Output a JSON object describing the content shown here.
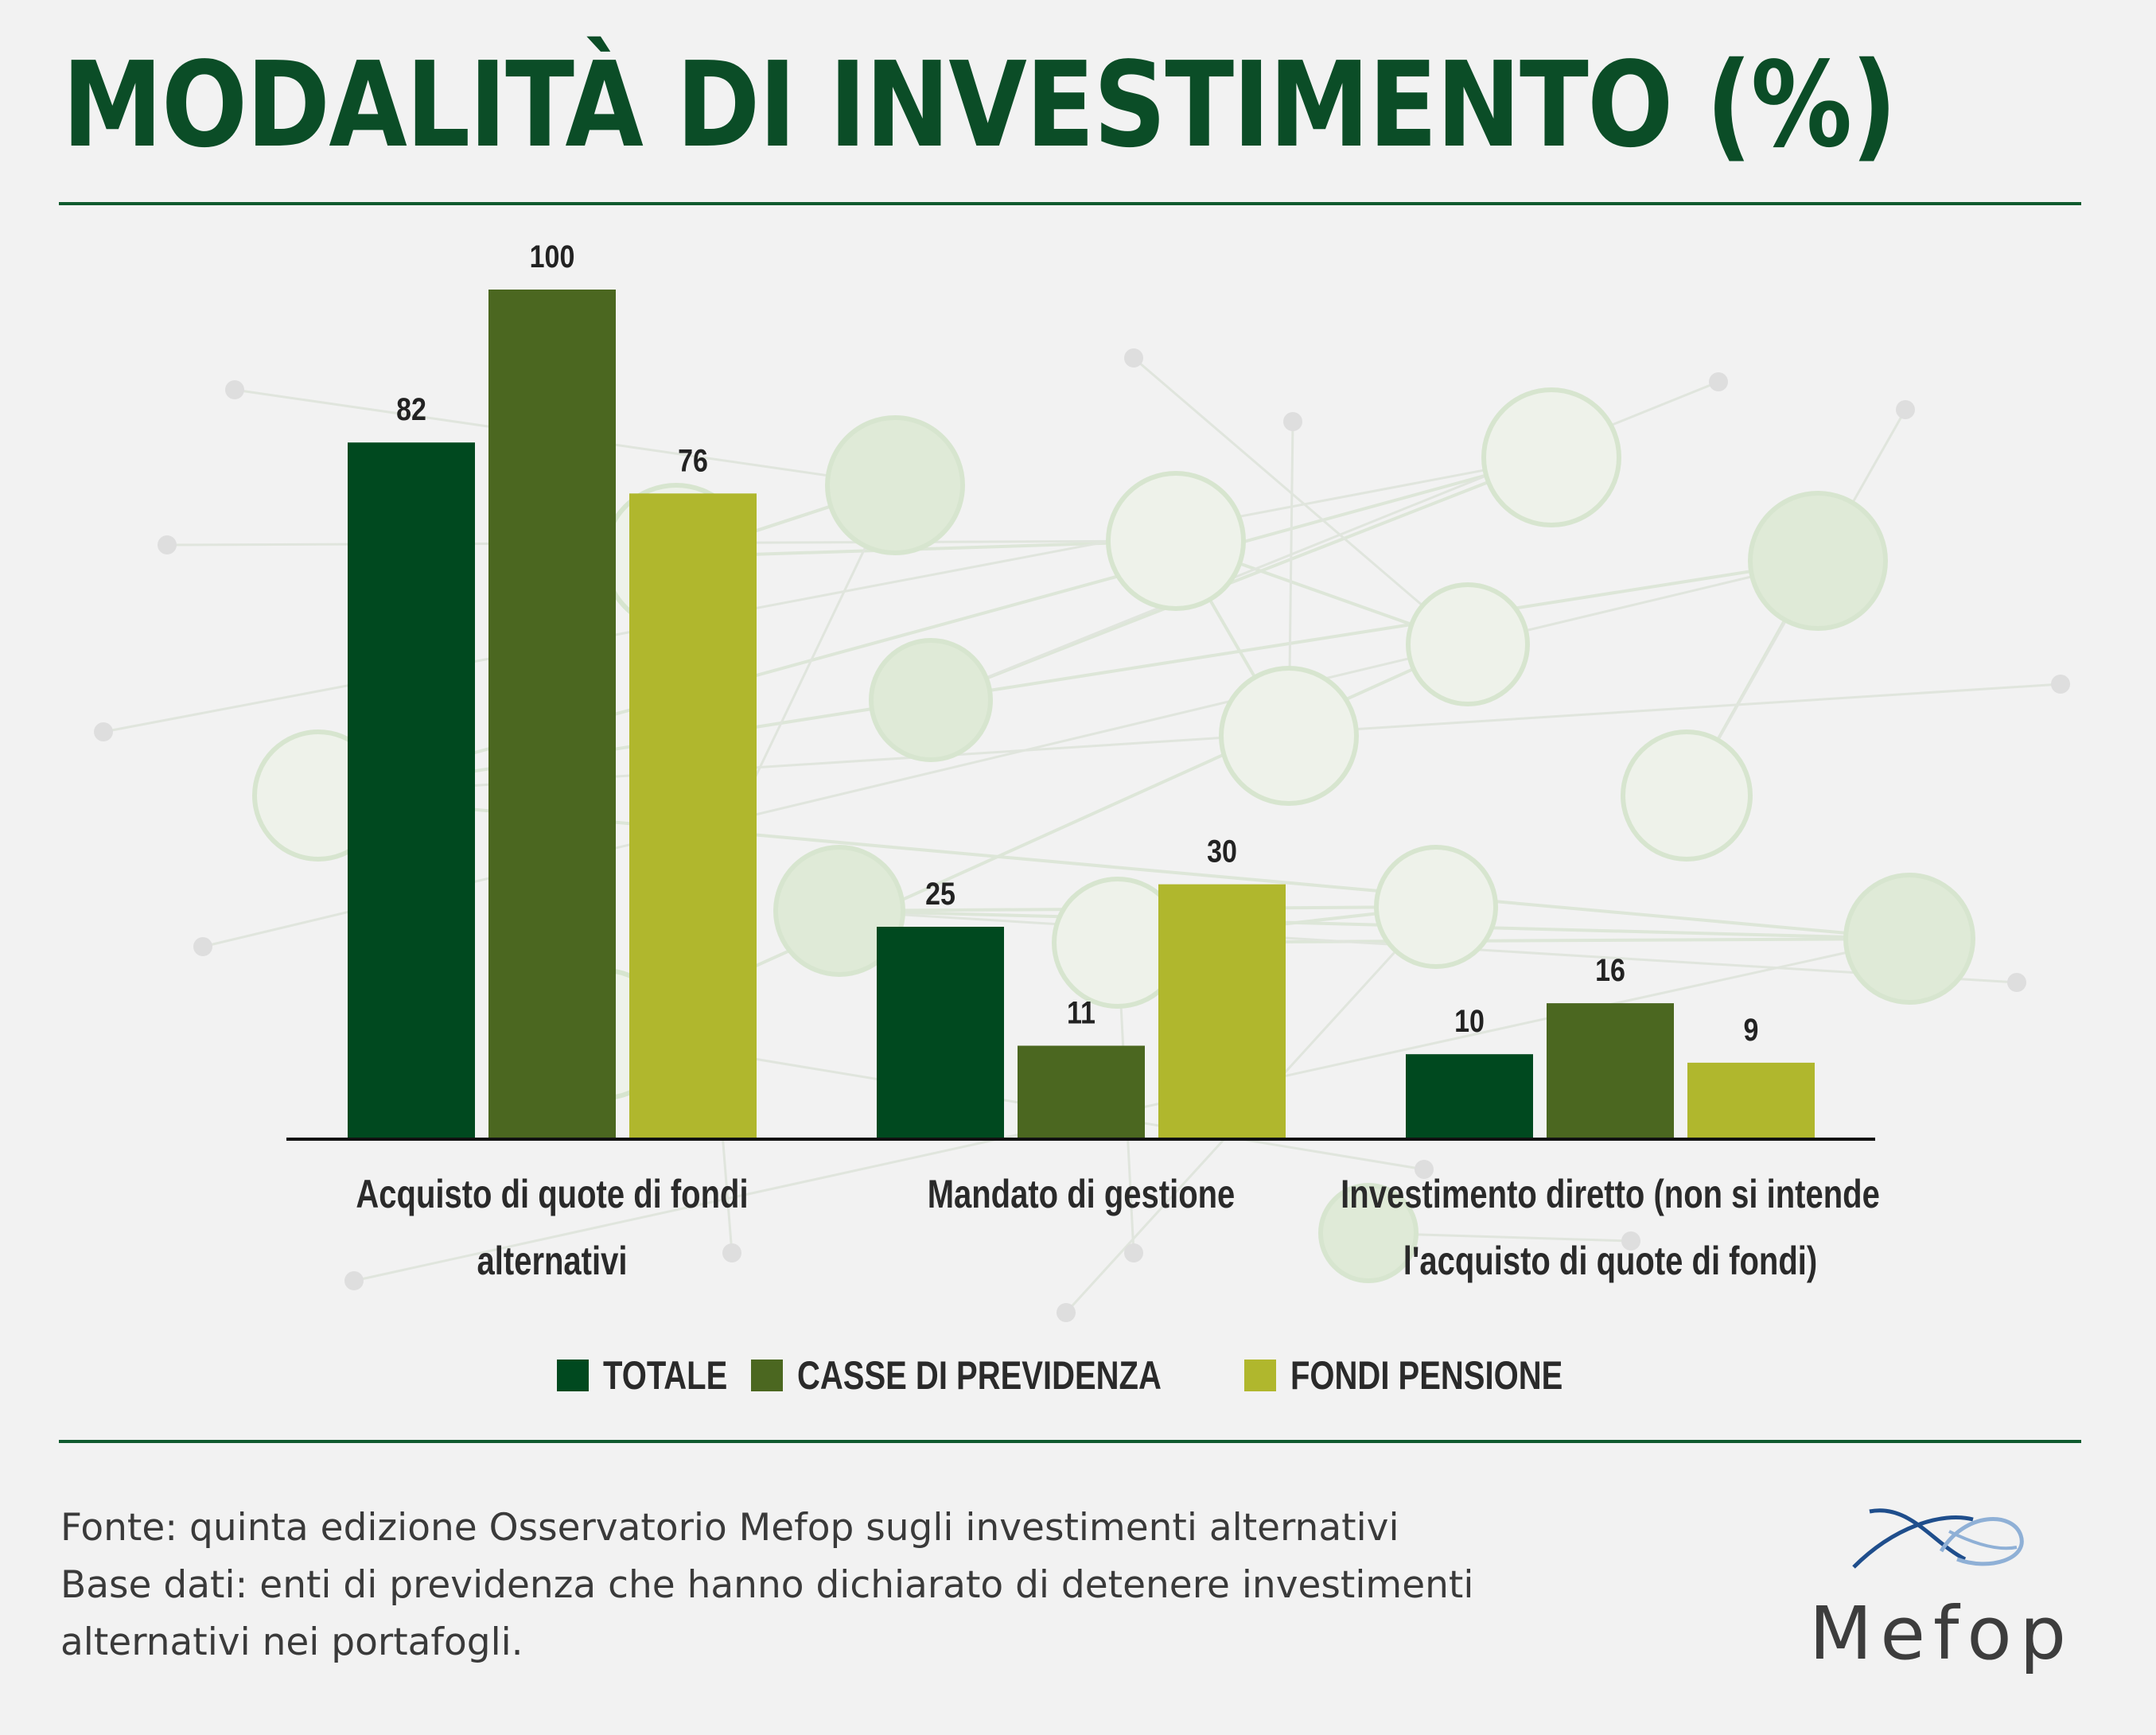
{
  "title": "MODALITÀ DI INVESTIMENTO (%)",
  "colors": {
    "accent": "#0b4d27",
    "totale": "#00491f",
    "casse": "#4b6720",
    "fondi": "#b0b72d"
  },
  "chart_data": {
    "type": "bar",
    "categories": [
      [
        "Acquisto di quote di fondi",
        "alternativi"
      ],
      [
        "Mandato di gestione"
      ],
      [
        "Investimento diretto (non si intende",
        "l'acquisto di quote di fondi)"
      ]
    ],
    "series": [
      {
        "name": "TOTALE",
        "values": [
          82,
          25,
          10
        ],
        "color": "#00491f"
      },
      {
        "name": "CASSE DI PREVIDENZA",
        "values": [
          100,
          11,
          16
        ],
        "color": "#4b6720"
      },
      {
        "name": "FONDI PENSIONE",
        "values": [
          76,
          30,
          9
        ],
        "color": "#b0b72d"
      }
    ],
    "ylim": [
      0,
      100
    ],
    "grid": false,
    "legend": "bottom-center",
    "data_labels": true
  },
  "legend": {
    "items": [
      {
        "label": "TOTALE",
        "color": "#00491f"
      },
      {
        "label": "CASSE DI PREVIDENZA",
        "color": "#4b6720"
      },
      {
        "label": "FONDI PENSIONE",
        "color": "#b0b72d"
      }
    ]
  },
  "footer": {
    "line1": "Fonte: quinta edizione Osservatorio Mefop sugli investimenti alternativi",
    "line2": "Base dati: enti di previdenza che hanno dichiarato di detenere investimenti",
    "line3": "alternativi nei portafogli."
  },
  "logo": {
    "text": "Mefop"
  }
}
